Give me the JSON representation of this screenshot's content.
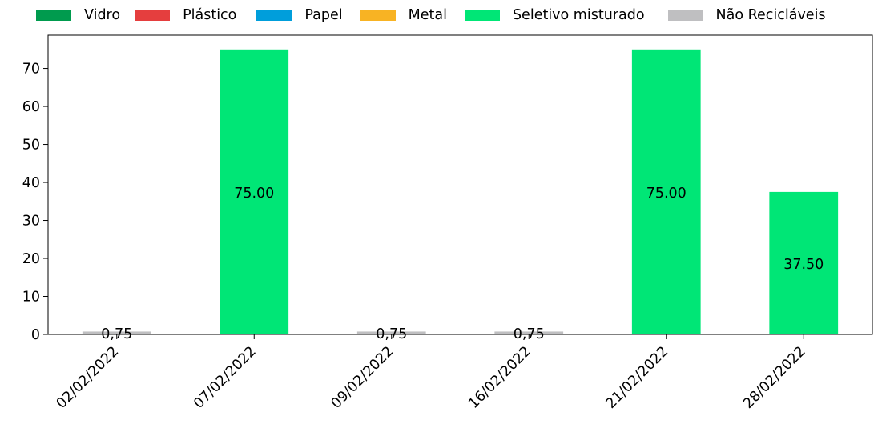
{
  "chart_data": {
    "type": "bar",
    "stacked": true,
    "categories": [
      "02/02/2022",
      "07/02/2022",
      "09/02/2022",
      "16/02/2022",
      "21/02/2022",
      "28/02/2022"
    ],
    "series": [
      {
        "name": "Vidro",
        "color": "#009B4E",
        "values": [
          0,
          0,
          0,
          0,
          0,
          0
        ]
      },
      {
        "name": "Plástico",
        "color": "#E53E3E",
        "values": [
          0,
          0,
          0,
          0,
          0,
          0
        ]
      },
      {
        "name": "Papel",
        "color": "#009EDB",
        "values": [
          0,
          0,
          0,
          0,
          0,
          0
        ]
      },
      {
        "name": "Metal",
        "color": "#F8B323",
        "values": [
          0,
          0,
          0,
          0,
          0,
          0
        ]
      },
      {
        "name": "Seletivo misturado",
        "color": "#00E676",
        "values": [
          0,
          75,
          0,
          0,
          75,
          37.5
        ]
      },
      {
        "name": "Não Recicláveis",
        "color": "#BFBFC1",
        "values": [
          0.75,
          0,
          0.75,
          0.75,
          0,
          0
        ]
      }
    ],
    "data_labels": [
      "0,75",
      "75.00",
      "0,75",
      "0,75",
      "75.00",
      "37.50"
    ],
    "yticks": [
      0,
      10,
      20,
      30,
      40,
      50,
      60,
      70
    ],
    "ylim": [
      0,
      78.75
    ],
    "title": "",
    "xlabel": "",
    "ylabel": "",
    "legend_position": "top"
  }
}
